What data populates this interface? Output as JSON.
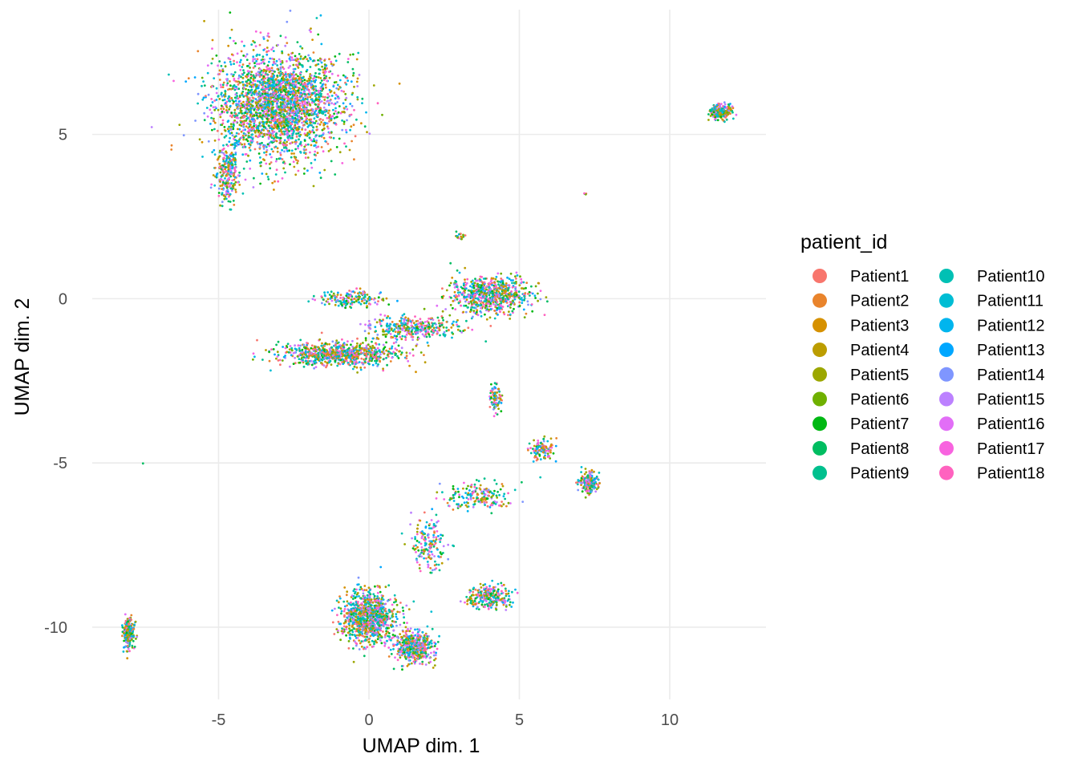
{
  "chart_data": {
    "type": "scatter",
    "xlabel": "UMAP dim. 1",
    "ylabel": "UMAP dim. 2",
    "xlim": [
      -9.2,
      13.2
    ],
    "ylim": [
      -12.2,
      8.8
    ],
    "x_ticks": [
      -5,
      0,
      5,
      10
    ],
    "x_tick_labels": [
      "-5",
      "0",
      "5",
      "10"
    ],
    "y_ticks": [
      -10,
      -5,
      0,
      5
    ],
    "y_tick_labels": [
      "-10",
      "-5",
      "0",
      "5"
    ],
    "grid": true,
    "legend": {
      "title": "patient_id",
      "placement": "right",
      "columns": 2
    },
    "series": [
      {
        "name": "Patient1",
        "color": "#F8766D"
      },
      {
        "name": "Patient2",
        "color": "#E9842C"
      },
      {
        "name": "Patient3",
        "color": "#D69100"
      },
      {
        "name": "Patient4",
        "color": "#BC9D00"
      },
      {
        "name": "Patient5",
        "color": "#9CA700"
      },
      {
        "name": "Patient6",
        "color": "#6FB000"
      },
      {
        "name": "Patient7",
        "color": "#00B813"
      },
      {
        "name": "Patient8",
        "color": "#00BD61"
      },
      {
        "name": "Patient9",
        "color": "#00C08E"
      },
      {
        "name": "Patient10",
        "color": "#00C0B4"
      },
      {
        "name": "Patient11",
        "color": "#00BDD4"
      },
      {
        "name": "Patient12",
        "color": "#00B5EE"
      },
      {
        "name": "Patient13",
        "color": "#00A7FF"
      },
      {
        "name": "Patient14",
        "color": "#7F96FF"
      },
      {
        "name": "Patient15",
        "color": "#BC81FF"
      },
      {
        "name": "Patient16",
        "color": "#E26EF7"
      },
      {
        "name": "Patient17",
        "color": "#F863DF"
      },
      {
        "name": "Patient18",
        "color": "#FF62BF"
      }
    ],
    "clusters": [
      {
        "cx": -3.0,
        "cy": 5.9,
        "rx": 2.1,
        "ry": 1.6,
        "n": 2600
      },
      {
        "cx": -4.7,
        "cy": 3.8,
        "rx": 0.4,
        "ry": 0.9,
        "n": 260
      },
      {
        "cx": 11.7,
        "cy": 5.7,
        "rx": 0.35,
        "ry": 0.25,
        "n": 220
      },
      {
        "cx": 7.2,
        "cy": 3.2,
        "rx": 0.05,
        "ry": 0.05,
        "n": 4
      },
      {
        "cx": 3.0,
        "cy": 1.9,
        "rx": 0.2,
        "ry": 0.15,
        "n": 18
      },
      {
        "cx": 4.0,
        "cy": 0.1,
        "rx": 1.3,
        "ry": 0.55,
        "n": 700
      },
      {
        "cx": 1.5,
        "cy": -0.9,
        "rx": 1.5,
        "ry": 0.35,
        "n": 340
      },
      {
        "cx": -1.0,
        "cy": -1.7,
        "rx": 2.0,
        "ry": 0.35,
        "n": 800
      },
      {
        "cx": -0.6,
        "cy": 0.0,
        "rx": 1.1,
        "ry": 0.25,
        "n": 160
      },
      {
        "cx": 4.2,
        "cy": -3.0,
        "rx": 0.2,
        "ry": 0.45,
        "n": 90
      },
      {
        "cx": 5.8,
        "cy": -4.6,
        "rx": 0.35,
        "ry": 0.35,
        "n": 110
      },
      {
        "cx": 7.3,
        "cy": -5.6,
        "rx": 0.35,
        "ry": 0.3,
        "n": 180
      },
      {
        "cx": 3.7,
        "cy": -6.0,
        "rx": 1.1,
        "ry": 0.4,
        "n": 180
      },
      {
        "cx": 2.0,
        "cy": -7.5,
        "rx": 0.6,
        "ry": 0.8,
        "n": 170
      },
      {
        "cx": 0.0,
        "cy": -9.7,
        "rx": 0.9,
        "ry": 0.8,
        "n": 900
      },
      {
        "cx": 1.5,
        "cy": -10.6,
        "rx": 0.6,
        "ry": 0.5,
        "n": 450
      },
      {
        "cx": 4.0,
        "cy": -9.1,
        "rx": 0.7,
        "ry": 0.35,
        "n": 260
      },
      {
        "cx": -8.0,
        "cy": -10.2,
        "rx": 0.2,
        "ry": 0.45,
        "n": 220
      },
      {
        "cx": -7.5,
        "cy": -5.0,
        "rx": 0.02,
        "ry": 0.02,
        "n": 1
      }
    ]
  }
}
